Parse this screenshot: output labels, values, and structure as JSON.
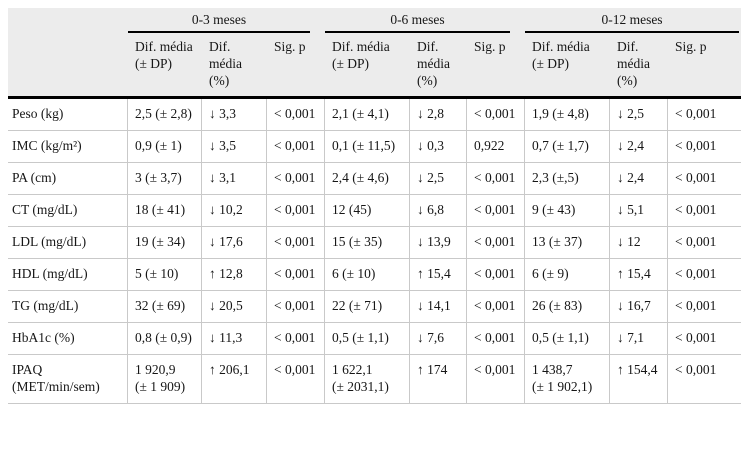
{
  "table": {
    "header_bg": "#ececec",
    "rule_color": "#000000",
    "grid_color": "#c9c9c9",
    "groups": [
      "0-3 meses",
      "0-6 meses",
      "0-12 meses"
    ],
    "sub_headers": [
      "Dif. média (± DP)",
      "Dif. média (%)",
      "Sig. p"
    ],
    "rows": [
      {
        "label": "Peso (kg)",
        "values": [
          "2,5 (± 2,8)",
          "↓ 3,3",
          "< 0,001",
          "2,1 (± 4,1)",
          "↓ 2,8",
          "< 0,001",
          "1,9 (± 4,8)",
          "↓ 2,5",
          "< 0,001"
        ]
      },
      {
        "label": "IMC (kg/m²)",
        "values": [
          "0,9 (± 1)",
          "↓ 3,5",
          "< 0,001",
          "0,1 (± 11,5)",
          "↓ 0,3",
          "0,922",
          "0,7 (± 1,7)",
          "↓ 2,4",
          "< 0,001"
        ]
      },
      {
        "label": "PA (cm)",
        "values": [
          "3 (± 3,7)",
          "↓ 3,1",
          "< 0,001",
          "2,4 (± 4,6)",
          "↓ 2,5",
          "< 0,001",
          "2,3 (±,5)",
          "↓ 2,4",
          "< 0,001"
        ]
      },
      {
        "label": "CT (mg/dL)",
        "values": [
          "18 (± 41)",
          "↓ 10,2",
          "< 0,001",
          "12 (45)",
          "↓ 6,8",
          "< 0,001",
          "9 (± 43)",
          "↓ 5,1",
          "< 0,001"
        ]
      },
      {
        "label": "LDL (mg/dL)",
        "values": [
          "19 (± 34)",
          "↓ 17,6",
          "< 0,001",
          "15 (± 35)",
          "↓ 13,9",
          "< 0,001",
          "13 (± 37)",
          "↓ 12",
          "< 0,001"
        ]
      },
      {
        "label": "HDL (mg/dL)",
        "values": [
          "5 (± 10)",
          "↑ 12,8",
          "< 0,001",
          "6 (± 10)",
          "↑ 15,4",
          "< 0,001",
          "6 (± 9)",
          "↑ 15,4",
          "< 0,001"
        ]
      },
      {
        "label": "TG (mg/dL)",
        "values": [
          "32 (± 69)",
          "↓ 20,5",
          "< 0,001",
          "22 (± 71)",
          "↓ 14,1",
          "< 0,001",
          "26 (± 83)",
          "↓ 16,7",
          "< 0,001"
        ]
      },
      {
        "label": "HbA1c (%)",
        "values": [
          "0,8 (± 0,9)",
          "↓ 11,3",
          "< 0,001",
          "0,5 (± 1,1)",
          "↓ 7,6",
          "< 0,001",
          "0,5 (± 1,1)",
          "↓ 7,1",
          "< 0,001"
        ]
      },
      {
        "label": "IPAQ (MET/min/sem)",
        "values": [
          "1 920,9 (± 1 909)",
          "↑ 206,1",
          "< 0,001",
          "1 622,1 (± 2031,1)",
          "↑ 174",
          "< 0,001",
          "1 438,7 (± 1 902,1)",
          "↑ 154,4",
          "< 0,001"
        ]
      }
    ]
  }
}
